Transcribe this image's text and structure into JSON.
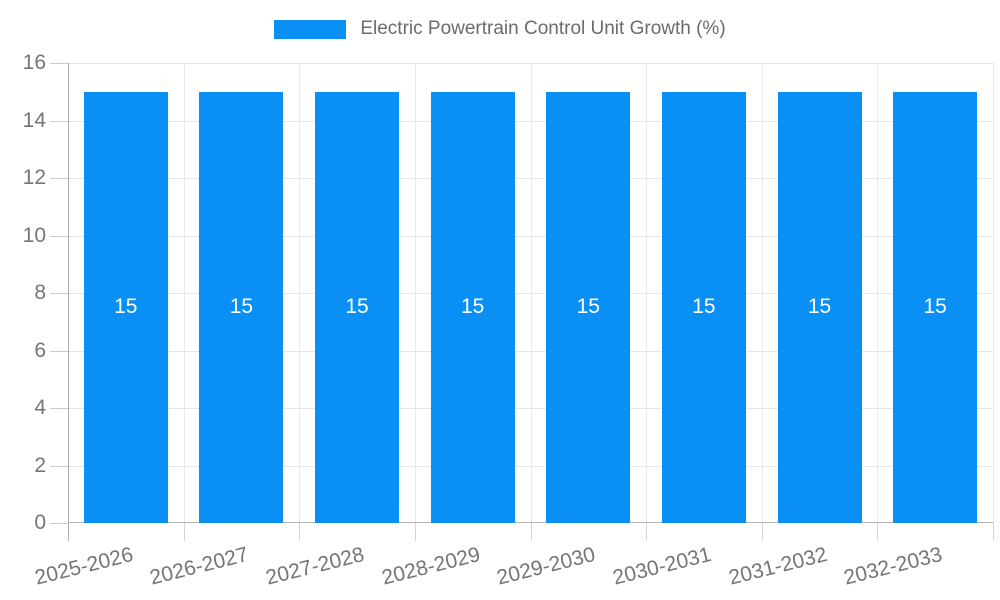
{
  "legend": {
    "label": "Electric Powertrain Control Unit Growth (%)"
  },
  "chart_data": {
    "type": "bar",
    "title": "Electric Powertrain Control Unit Growth (%)",
    "categories": [
      "2025-2026",
      "2026-2027",
      "2027-2028",
      "2028-2029",
      "2029-2030",
      "2030-2031",
      "2031-2032",
      "2032-2033"
    ],
    "values": [
      15,
      15,
      15,
      15,
      15,
      15,
      15,
      15
    ],
    "bar_value_labels": [
      "15",
      "15",
      "15",
      "15",
      "15",
      "15",
      "15",
      "15"
    ],
    "xlabel": "",
    "ylabel": "",
    "ylim": [
      0,
      16
    ],
    "yticks": [
      0,
      2,
      4,
      6,
      8,
      10,
      12,
      14,
      16
    ],
    "grid": true,
    "legend_position": "top",
    "colors": {
      "bar": "#0a90f5",
      "bar_label": "#ffffff",
      "gridline": "#e6e6e6",
      "axis_line": "#b3b3b3",
      "tick_label": "#757575",
      "legend_text": "#6b6b6b",
      "background": "#ffffff"
    }
  }
}
